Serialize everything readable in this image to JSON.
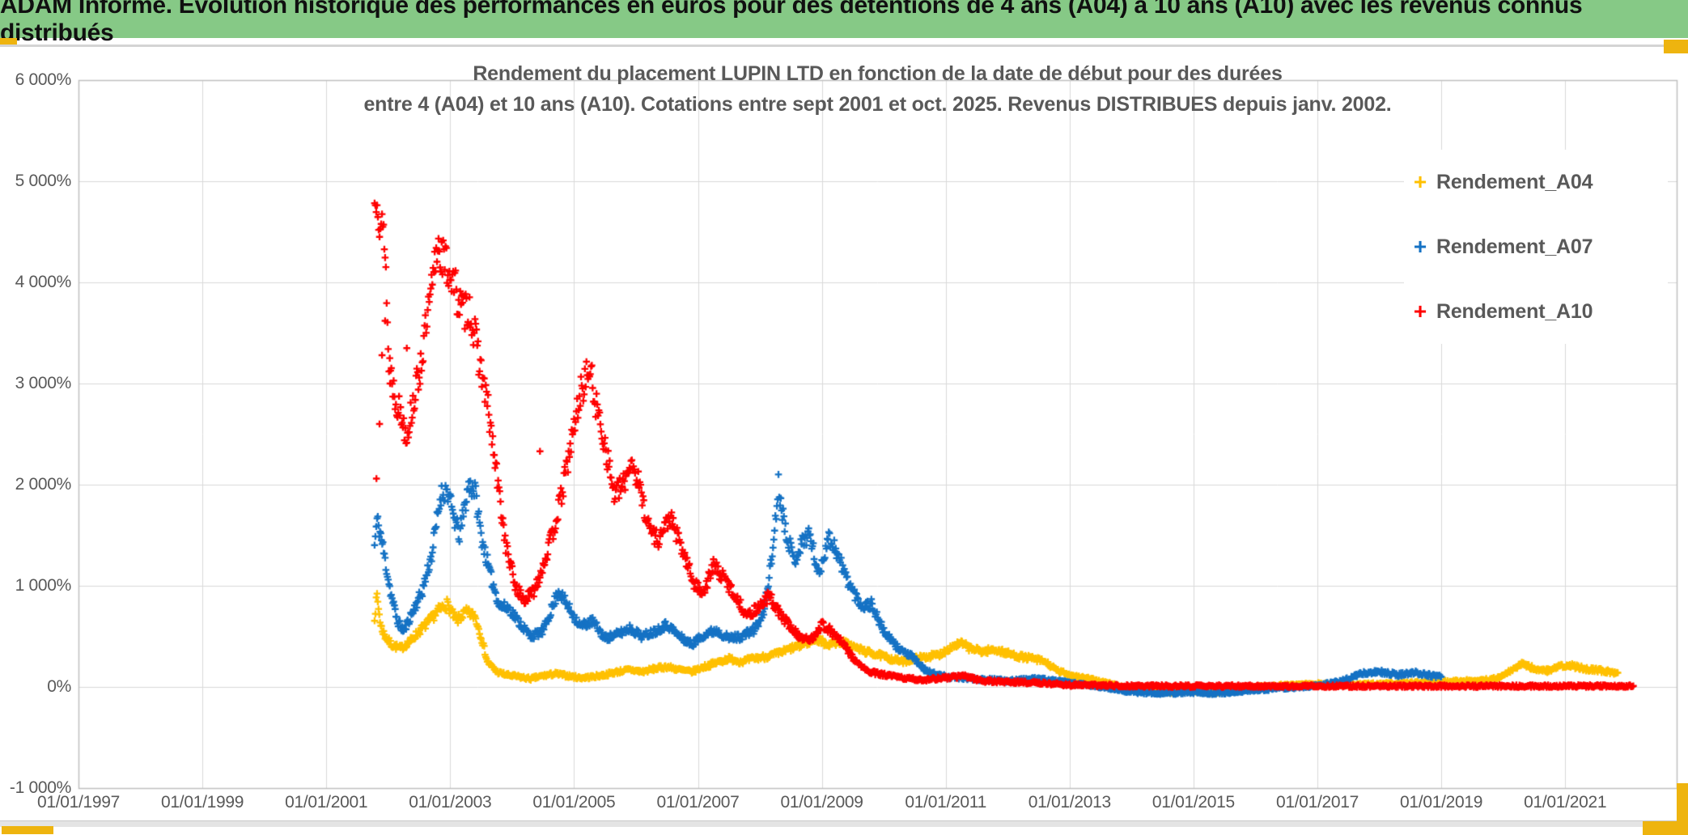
{
  "banner": {
    "title": "ADAM Informe. Evolution historique des performances en euros pour des détentions de 4 ans (A04) à 10 ans (A10) avec les revenus connus distribués"
  },
  "chart": {
    "title_line1": "Rendement du placement LUPIN LTD en fonction de la date de début pour des durées",
    "title_line2": "entre 4 (A04) et 10 ans (A10). Cotations entre sept 2001 et oct. 2025. Revenus DISTRIBUES depuis janv. 2002."
  },
  "colors": {
    "banner_bg": "#86c986",
    "grid": "#d9d9d9",
    "plot_border": "#bfbfbf",
    "text": "#595959",
    "selection_gold": "#eeb40f",
    "series_a04": "#ffc000",
    "series_a07": "#1572c4",
    "series_a10": "#ff0000"
  },
  "chart_data": {
    "type": "scatter",
    "marker": "plus",
    "grid": true,
    "legend_position": "right",
    "x_unit": "start date",
    "y_unit": "percent",
    "x_axis": {
      "range": [
        1997,
        2022.8
      ],
      "ticks": [
        {
          "label": "01/01/1997",
          "year": 1997
        },
        {
          "label": "01/01/1999",
          "year": 1999
        },
        {
          "label": "01/01/2001",
          "year": 2001
        },
        {
          "label": "01/01/2003",
          "year": 2003
        },
        {
          "label": "01/01/2005",
          "year": 2005
        },
        {
          "label": "01/01/2007",
          "year": 2007
        },
        {
          "label": "01/01/2009",
          "year": 2009
        },
        {
          "label": "01/01/2011",
          "year": 2011
        },
        {
          "label": "01/01/2013",
          "year": 2013
        },
        {
          "label": "01/01/2015",
          "year": 2015
        },
        {
          "label": "01/01/2017",
          "year": 2017
        },
        {
          "label": "01/01/2019",
          "year": 2019
        },
        {
          "label": "01/01/2021",
          "year": 2021
        }
      ]
    },
    "y_axis": {
      "range": [
        -1000,
        6000
      ],
      "ticks": [
        {
          "label": "6 000%",
          "value": 6000
        },
        {
          "label": "5 000%",
          "value": 5000
        },
        {
          "label": "4 000%",
          "value": 4000
        },
        {
          "label": "3 000%",
          "value": 3000
        },
        {
          "label": "2 000%",
          "value": 2000
        },
        {
          "label": "1 000%",
          "value": 1000
        },
        {
          "label": "0%",
          "value": 0
        },
        {
          "label": "-1 000%",
          "value": -1000
        }
      ]
    },
    "series": [
      {
        "name": "Rendement_A04",
        "color": "#ffc000",
        "anchors": [
          [
            2001.78,
            700
          ],
          [
            2001.82,
            900
          ],
          [
            2001.88,
            600
          ],
          [
            2001.95,
            500
          ],
          [
            2002.05,
            420
          ],
          [
            2002.2,
            380
          ],
          [
            2002.35,
            450
          ],
          [
            2002.5,
            550
          ],
          [
            2002.65,
            640
          ],
          [
            2002.8,
            750
          ],
          [
            2002.95,
            820
          ],
          [
            2003.1,
            650
          ],
          [
            2003.25,
            740
          ],
          [
            2003.4,
            700
          ],
          [
            2003.5,
            500
          ],
          [
            2003.6,
            250
          ],
          [
            2003.75,
            150
          ],
          [
            2003.9,
            120
          ],
          [
            2004.1,
            100
          ],
          [
            2004.3,
            80
          ],
          [
            2004.5,
            110
          ],
          [
            2004.7,
            130
          ],
          [
            2004.9,
            110
          ],
          [
            2005.1,
            90
          ],
          [
            2005.3,
            100
          ],
          [
            2005.5,
            120
          ],
          [
            2005.7,
            150
          ],
          [
            2005.9,
            170
          ],
          [
            2006.1,
            150
          ],
          [
            2006.3,
            180
          ],
          [
            2006.5,
            200
          ],
          [
            2006.7,
            170
          ],
          [
            2006.9,
            150
          ],
          [
            2007.1,
            200
          ],
          [
            2007.3,
            240
          ],
          [
            2007.5,
            280
          ],
          [
            2007.7,
            250
          ],
          [
            2007.9,
            280
          ],
          [
            2008.1,
            300
          ],
          [
            2008.3,
            330
          ],
          [
            2008.5,
            380
          ],
          [
            2008.7,
            420
          ],
          [
            2008.9,
            480
          ],
          [
            2009.1,
            420
          ],
          [
            2009.3,
            450
          ],
          [
            2009.5,
            400
          ],
          [
            2009.7,
            350
          ],
          [
            2009.9,
            320
          ],
          [
            2010.1,
            280
          ],
          [
            2010.3,
            250
          ],
          [
            2010.5,
            280
          ],
          [
            2010.7,
            300
          ],
          [
            2010.9,
            320
          ],
          [
            2011.1,
            400
          ],
          [
            2011.25,
            430
          ],
          [
            2011.4,
            380
          ],
          [
            2011.6,
            350
          ],
          [
            2011.8,
            370
          ],
          [
            2012.0,
            330
          ],
          [
            2012.2,
            300
          ],
          [
            2012.4,
            280
          ],
          [
            2012.6,
            250
          ],
          [
            2012.8,
            160
          ],
          [
            2013.0,
            120
          ],
          [
            2013.3,
            80
          ],
          [
            2013.6,
            40
          ],
          [
            2014.0,
            -20
          ],
          [
            2014.5,
            -50
          ],
          [
            2015.0,
            -40
          ],
          [
            2015.3,
            -60
          ],
          [
            2015.7,
            -30
          ],
          [
            2016.0,
            0
          ],
          [
            2016.5,
            20
          ],
          [
            2017.0,
            30
          ],
          [
            2017.5,
            20
          ],
          [
            2018.0,
            30
          ],
          [
            2018.5,
            40
          ],
          [
            2019.0,
            50
          ],
          [
            2019.5,
            60
          ],
          [
            2019.9,
            80
          ],
          [
            2020.1,
            150
          ],
          [
            2020.3,
            230
          ],
          [
            2020.5,
            180
          ],
          [
            2020.7,
            160
          ],
          [
            2020.9,
            200
          ],
          [
            2021.1,
            210
          ],
          [
            2021.3,
            180
          ],
          [
            2021.5,
            170
          ],
          [
            2021.7,
            150
          ],
          [
            2021.85,
            140
          ]
        ]
      },
      {
        "name": "Rendement_A07",
        "color": "#1572c4",
        "anchors": [
          [
            2001.78,
            1400
          ],
          [
            2001.82,
            1650
          ],
          [
            2001.88,
            1500
          ],
          [
            2001.95,
            1250
          ],
          [
            2002.05,
            900
          ],
          [
            2002.15,
            650
          ],
          [
            2002.25,
            550
          ],
          [
            2002.4,
            750
          ],
          [
            2002.55,
            950
          ],
          [
            2002.7,
            1300
          ],
          [
            2002.85,
            1900
          ],
          [
            2002.95,
            1950
          ],
          [
            2003.05,
            1700
          ],
          [
            2003.15,
            1500
          ],
          [
            2003.3,
            2000
          ],
          [
            2003.4,
            1950
          ],
          [
            2003.5,
            1500
          ],
          [
            2003.65,
            1100
          ],
          [
            2003.8,
            800
          ],
          [
            2003.95,
            780
          ],
          [
            2004.1,
            650
          ],
          [
            2004.3,
            500
          ],
          [
            2004.5,
            550
          ],
          [
            2004.75,
            950
          ],
          [
            2004.9,
            800
          ],
          [
            2005.1,
            600
          ],
          [
            2005.3,
            650
          ],
          [
            2005.5,
            480
          ],
          [
            2005.7,
            520
          ],
          [
            2005.9,
            580
          ],
          [
            2006.1,
            500
          ],
          [
            2006.3,
            550
          ],
          [
            2006.5,
            620
          ],
          [
            2006.7,
            500
          ],
          [
            2006.9,
            420
          ],
          [
            2007.1,
            520
          ],
          [
            2007.3,
            560
          ],
          [
            2007.5,
            480
          ],
          [
            2007.7,
            500
          ],
          [
            2007.9,
            560
          ],
          [
            2008.05,
            700
          ],
          [
            2008.2,
            1300
          ],
          [
            2008.3,
            2000
          ],
          [
            2008.4,
            1600
          ],
          [
            2008.55,
            1250
          ],
          [
            2008.7,
            1450
          ],
          [
            2008.8,
            1520
          ],
          [
            2008.95,
            1100
          ],
          [
            2009.1,
            1480
          ],
          [
            2009.2,
            1400
          ],
          [
            2009.35,
            1150
          ],
          [
            2009.5,
            950
          ],
          [
            2009.65,
            800
          ],
          [
            2009.8,
            820
          ],
          [
            2010.0,
            550
          ],
          [
            2010.2,
            400
          ],
          [
            2010.45,
            300
          ],
          [
            2010.7,
            150
          ],
          [
            2011.0,
            100
          ],
          [
            2011.5,
            80
          ],
          [
            2012.0,
            60
          ],
          [
            2012.5,
            80
          ],
          [
            2013.0,
            40
          ],
          [
            2013.5,
            0
          ],
          [
            2014.0,
            -50
          ],
          [
            2014.5,
            -60
          ],
          [
            2015.0,
            -55
          ],
          [
            2015.5,
            -60
          ],
          [
            2016.0,
            -30
          ],
          [
            2016.5,
            -10
          ],
          [
            2017.0,
            10
          ],
          [
            2017.4,
            60
          ],
          [
            2017.7,
            130
          ],
          [
            2018.0,
            150
          ],
          [
            2018.3,
            120
          ],
          [
            2018.6,
            140
          ],
          [
            2018.85,
            110
          ],
          [
            2019.0,
            100
          ]
        ]
      },
      {
        "name": "Rendement_A10",
        "color": "#ff0000",
        "anchors": [
          [
            2001.78,
            4750
          ],
          [
            2001.82,
            5000
          ],
          [
            2001.86,
            4650
          ],
          [
            2001.9,
            4500
          ],
          [
            2001.95,
            4400
          ],
          [
            2002.0,
            3300
          ],
          [
            2002.1,
            2900
          ],
          [
            2002.2,
            2700
          ],
          [
            2002.3,
            2500
          ],
          [
            2002.4,
            2800
          ],
          [
            2002.5,
            3100
          ],
          [
            2002.6,
            3500
          ],
          [
            2002.7,
            3900
          ],
          [
            2002.8,
            4400
          ],
          [
            2002.9,
            4200
          ],
          [
            2003.0,
            4100
          ],
          [
            2003.1,
            3900
          ],
          [
            2003.2,
            3700
          ],
          [
            2003.3,
            3770
          ],
          [
            2003.45,
            3300
          ],
          [
            2003.6,
            2800
          ],
          [
            2003.75,
            2100
          ],
          [
            2003.9,
            1400
          ],
          [
            2004.05,
            1000
          ],
          [
            2004.2,
            850
          ],
          [
            2004.35,
            950
          ],
          [
            2004.5,
            1200
          ],
          [
            2004.65,
            1500
          ],
          [
            2004.8,
            1900
          ],
          [
            2004.95,
            2400
          ],
          [
            2005.1,
            2900
          ],
          [
            2005.25,
            3150
          ],
          [
            2005.35,
            2800
          ],
          [
            2005.5,
            2400
          ],
          [
            2005.65,
            1900
          ],
          [
            2005.8,
            2000
          ],
          [
            2005.92,
            2250
          ],
          [
            2006.05,
            2000
          ],
          [
            2006.2,
            1600
          ],
          [
            2006.35,
            1450
          ],
          [
            2006.55,
            1680
          ],
          [
            2006.75,
            1350
          ],
          [
            2006.95,
            1000
          ],
          [
            2007.1,
            950
          ],
          [
            2007.25,
            1200
          ],
          [
            2007.45,
            1050
          ],
          [
            2007.65,
            850
          ],
          [
            2007.8,
            700
          ],
          [
            2008.0,
            800
          ],
          [
            2008.15,
            900
          ],
          [
            2008.35,
            700
          ],
          [
            2008.6,
            520
          ],
          [
            2008.8,
            450
          ],
          [
            2009.0,
            620
          ],
          [
            2009.15,
            550
          ],
          [
            2009.35,
            420
          ],
          [
            2009.55,
            250
          ],
          [
            2009.75,
            150
          ],
          [
            2010.0,
            120
          ],
          [
            2010.3,
            90
          ],
          [
            2010.6,
            70
          ],
          [
            2011.0,
            90
          ],
          [
            2011.3,
            110
          ],
          [
            2011.6,
            60
          ],
          [
            2012.0,
            50
          ],
          [
            2012.5,
            40
          ],
          [
            2013.0,
            20
          ],
          [
            2014.0,
            10
          ],
          [
            2016.0,
            8
          ],
          [
            2018.0,
            8
          ],
          [
            2020.0,
            8
          ],
          [
            2022.1,
            10
          ]
        ],
        "extra_points": [
          [
            2001.81,
            2060
          ],
          [
            2001.86,
            2600
          ],
          [
            2001.9,
            3280
          ],
          [
            2001.95,
            3620
          ],
          [
            2002.03,
            3000
          ],
          [
            2002.3,
            3350
          ],
          [
            2004.45,
            2330
          ]
        ]
      }
    ]
  }
}
